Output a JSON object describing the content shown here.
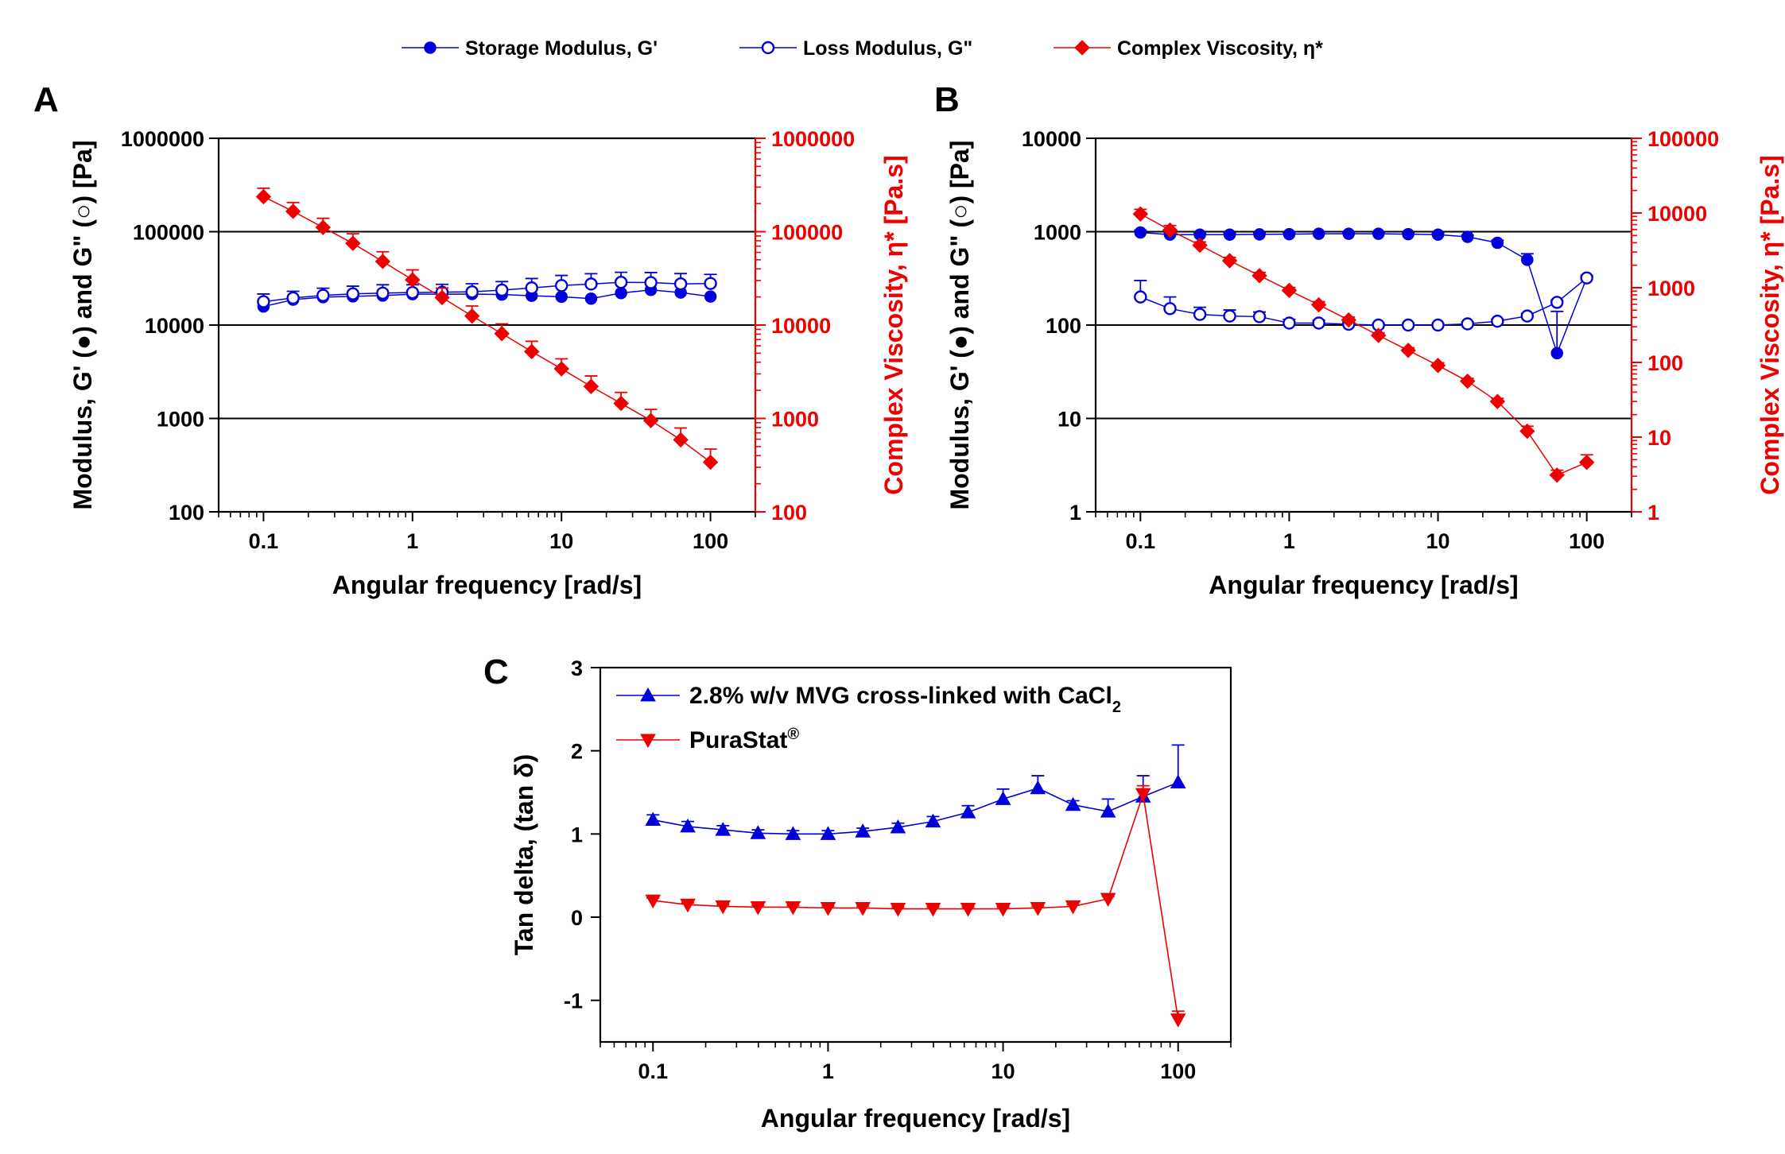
{
  "legend_top": [
    {
      "label": "Storage Modulus, G'",
      "marker": "filled-circle",
      "color": "#0000dd"
    },
    {
      "label": "Loss Modulus, G\"",
      "marker": "open-circle",
      "color": "#0000dd"
    },
    {
      "label": "Complex Viscosity, η*",
      "marker": "diamond",
      "color": "#ee0000"
    }
  ],
  "colors": {
    "blue": "#0000dd",
    "red": "#ee0000",
    "axis": "#000000"
  },
  "chart_data": [
    {
      "panel": "A",
      "type": "line",
      "xlabel": "Angular frequency [rad/s]",
      "ylabel": "Modulus, G' (●) and  G\" (○) [Pa]",
      "y2label": "Complex Viscosity, η* [Pa.s]",
      "xscale": "log",
      "yscale": "log",
      "y2scale": "log",
      "xlim": [
        0.05,
        200
      ],
      "ylim": [
        100,
        1000000
      ],
      "y2lim": [
        100,
        1000000
      ],
      "xticks": [
        "0.1",
        "1",
        "10",
        "100"
      ],
      "yticks": [
        "100",
        "1000",
        "10000",
        "100000",
        "1000000"
      ],
      "y2ticks": [
        "100",
        "1000",
        "10000",
        "100000",
        "1000000"
      ],
      "grid": "horizontal lines at major y ticks",
      "x": [
        0.1,
        0.158,
        0.251,
        0.398,
        0.631,
        1,
        1.58,
        2.51,
        3.98,
        6.31,
        10,
        15.8,
        25.1,
        39.8,
        63.1,
        100
      ],
      "series": [
        {
          "name": "Storage Modulus, G'",
          "axis": "left",
          "marker": "filled-circle",
          "values": [
            15800,
            18700,
            19900,
            20300,
            20700,
            21400,
            21400,
            21500,
            21200,
            20600,
            20100,
            19200,
            22000,
            23800,
            22300,
            20200
          ]
        },
        {
          "name": "Loss Modulus, G\"",
          "axis": "left",
          "marker": "open-circle",
          "values": [
            17800,
            19500,
            20800,
            21600,
            22000,
            22300,
            22500,
            22700,
            23700,
            25000,
            26500,
            27500,
            28700,
            28500,
            27600,
            27900
          ],
          "errors": [
            3700,
            3500,
            4000,
            4500,
            5000,
            4700,
            4800,
            5000,
            5500,
            6500,
            7500,
            8000,
            8000,
            8000,
            8000,
            7000
          ]
        },
        {
          "name": "Complex Viscosity, η*",
          "axis": "right",
          "marker": "diamond",
          "values": [
            237000,
            165000,
            111000,
            75000,
            48000,
            30500,
            19700,
            12500,
            8100,
            5200,
            3400,
            2200,
            1450,
            950,
            590,
            340
          ],
          "errors": [
            55000,
            40000,
            28000,
            20000,
            13000,
            8500,
            5200,
            3500,
            2200,
            1500,
            950,
            650,
            450,
            300,
            200,
            130
          ]
        }
      ]
    },
    {
      "panel": "B",
      "type": "line",
      "xlabel": "Angular frequency [rad/s]",
      "ylabel": "Modulus, G' (●) and  G\" (○) [Pa]",
      "y2label": "Complex Viscosity, η* [Pa.s]",
      "xscale": "log",
      "yscale": "log",
      "y2scale": "log",
      "xlim": [
        0.05,
        200
      ],
      "ylim": [
        1,
        10000
      ],
      "y2lim": [
        1,
        100000
      ],
      "xticks": [
        "0.1",
        "1",
        "10",
        "100"
      ],
      "yticks": [
        "1",
        "10",
        "100",
        "1000",
        "10000"
      ],
      "y2ticks": [
        "1",
        "10",
        "100",
        "1000",
        "10000",
        "100000"
      ],
      "grid": "horizontal lines at major y ticks",
      "x": [
        0.1,
        0.158,
        0.251,
        0.398,
        0.631,
        1,
        1.58,
        2.51,
        3.98,
        6.31,
        10,
        15.8,
        25.1,
        39.8,
        63.1,
        100
      ],
      "series": [
        {
          "name": "Storage Modulus, G'",
          "axis": "left",
          "marker": "filled-circle",
          "values": [
            980,
            930,
            930,
            930,
            935,
            940,
            950,
            950,
            950,
            940,
            930,
            880,
            760,
            500,
            50,
            320
          ],
          "errors": [
            60,
            40,
            30,
            30,
            30,
            30,
            30,
            30,
            30,
            30,
            30,
            40,
            50,
            80,
            90,
            20
          ]
        },
        {
          "name": "Loss Modulus, G\"",
          "axis": "left",
          "marker": "open-circle",
          "values": [
            200,
            150,
            130,
            125,
            123,
            105,
            105,
            102,
            100,
            100,
            100,
            103,
            110,
            125,
            175,
            320
          ],
          "errors": [
            100,
            50,
            25,
            20,
            15,
            10,
            8,
            6,
            5,
            4,
            4,
            5,
            6,
            8,
            10,
            15
          ]
        },
        {
          "name": "Complex Viscosity, η*",
          "axis": "right",
          "marker": "diamond",
          "values": [
            9700,
            5900,
            3700,
            2300,
            1450,
            920,
            590,
            370,
            230,
            145,
            91,
            56,
            30,
            12,
            3.1,
            4.6
          ],
          "errors": [
            1500,
            900,
            400,
            250,
            150,
            90,
            60,
            35,
            20,
            12,
            8,
            5,
            3,
            2,
            0.5,
            1.2
          ]
        }
      ]
    },
    {
      "panel": "C",
      "type": "line",
      "xlabel": "Angular frequency [rad/s]",
      "ylabel": "Tan delta, (tan δ)",
      "xscale": "log",
      "yscale": "linear",
      "xlim": [
        0.05,
        200
      ],
      "ylim": [
        -1.5,
        3
      ],
      "xticks": [
        "0.1",
        "1",
        "10",
        "100"
      ],
      "yticks": [
        "-1",
        "0",
        "1",
        "2",
        "3"
      ],
      "grid": "none",
      "legend_position": "top-left",
      "x": [
        0.1,
        0.158,
        0.251,
        0.398,
        0.631,
        1,
        1.58,
        2.51,
        3.98,
        6.31,
        10,
        15.8,
        25.1,
        39.8,
        63.1,
        100
      ],
      "series": [
        {
          "name": "2.8% w/v MVG cross-linked with CaCl",
          "name_subscript": "2",
          "marker": "triangle-up",
          "color": "#0000dd",
          "values": [
            1.17,
            1.09,
            1.05,
            1.01,
            1.0,
            1.0,
            1.03,
            1.08,
            1.15,
            1.26,
            1.42,
            1.55,
            1.35,
            1.27,
            1.45,
            1.62
          ],
          "errors": [
            0.06,
            0.06,
            0.05,
            0.04,
            0.04,
            0.04,
            0.04,
            0.05,
            0.06,
            0.08,
            0.12,
            0.15,
            0.05,
            0.15,
            0.25,
            0.45
          ]
        },
        {
          "name": "PuraStat",
          "name_superscript": "®",
          "marker": "triangle-down",
          "color": "#ee0000",
          "values": [
            0.2,
            0.15,
            0.13,
            0.12,
            0.12,
            0.11,
            0.11,
            0.1,
            0.1,
            0.1,
            0.1,
            0.11,
            0.13,
            0.22,
            1.48,
            -1.23
          ],
          "errors": [
            0.03,
            0.02,
            0.02,
            0.02,
            0.02,
            0.02,
            0.02,
            0.02,
            0.02,
            0.02,
            0.02,
            0.02,
            0.02,
            0.03,
            0.1,
            0.1
          ]
        }
      ]
    }
  ]
}
